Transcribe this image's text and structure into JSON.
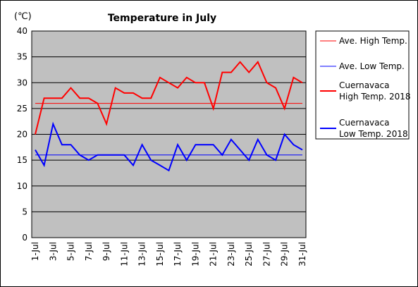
{
  "chart_data": {
    "type": "line",
    "title": "Temperature in July",
    "unit_label": "(℃)",
    "xlabel": "",
    "ylabel": "",
    "ylim": [
      0,
      40
    ],
    "yticks": [
      0,
      5,
      10,
      15,
      20,
      25,
      30,
      35,
      40
    ],
    "grid": true,
    "legend_position": "right",
    "x_tick_labels": [
      "1-Jul",
      "3-Jul",
      "5-Jul",
      "7-Jul",
      "9-Jul",
      "11-Jul",
      "13-Jul",
      "15-Jul",
      "17-Jul",
      "19-Jul",
      "21-Jul",
      "23-Jul",
      "25-Jul",
      "27-Jul",
      "29-Jul",
      "31-Jul"
    ],
    "x_tick_days": [
      1,
      3,
      5,
      7,
      9,
      11,
      13,
      15,
      17,
      19,
      21,
      23,
      25,
      27,
      29,
      31
    ],
    "days": [
      1,
      2,
      3,
      4,
      5,
      6,
      7,
      8,
      9,
      10,
      11,
      12,
      13,
      14,
      15,
      16,
      17,
      18,
      19,
      20,
      21,
      22,
      23,
      24,
      25,
      26,
      27,
      28,
      29,
      30,
      31
    ],
    "plot_background": "#c0c0c0",
    "series": [
      {
        "name": "Ave. High Temp.",
        "legend_lines": [
          "Ave. High Temp."
        ],
        "color": "#ff0000",
        "thick": false,
        "values": [
          26,
          26,
          26,
          26,
          26,
          26,
          26,
          26,
          26,
          26,
          26,
          26,
          26,
          26,
          26,
          26,
          26,
          26,
          26,
          26,
          26,
          26,
          26,
          26,
          26,
          26,
          26,
          26,
          26,
          26,
          26
        ]
      },
      {
        "name": "Ave. Low Temp.",
        "legend_lines": [
          "Ave. Low Temp."
        ],
        "color": "#0000ff",
        "thick": false,
        "values": [
          16,
          16,
          16,
          16,
          16,
          16,
          16,
          16,
          16,
          16,
          16,
          16,
          16,
          16,
          16,
          16,
          16,
          16,
          16,
          16,
          16,
          16,
          16,
          16,
          16,
          16,
          16,
          16,
          16,
          16,
          16
        ]
      },
      {
        "name": "Cuernavaca High Temp. 2018",
        "legend_lines": [
          "Cuernavaca",
          "High Temp. 2018"
        ],
        "color": "#ff0000",
        "thick": true,
        "values": [
          20,
          27,
          27,
          27,
          29,
          27,
          27,
          26,
          22,
          29,
          28,
          28,
          27,
          27,
          31,
          30,
          29,
          31,
          30,
          30,
          25,
          32,
          32,
          34,
          32,
          34,
          30,
          29,
          25,
          31,
          30
        ]
      },
      {
        "name": "Cuernavaca Low Temp. 2018",
        "legend_lines": [
          "Cuernavaca",
          "Low Temp. 2018"
        ],
        "color": "#0000ff",
        "thick": true,
        "values": [
          17,
          14,
          22,
          18,
          18,
          16,
          15,
          16,
          16,
          16,
          16,
          14,
          18,
          15,
          14,
          13,
          18,
          15,
          18,
          18,
          18,
          16,
          19,
          17,
          15,
          19,
          16,
          15,
          20,
          18,
          17
        ]
      }
    ]
  }
}
